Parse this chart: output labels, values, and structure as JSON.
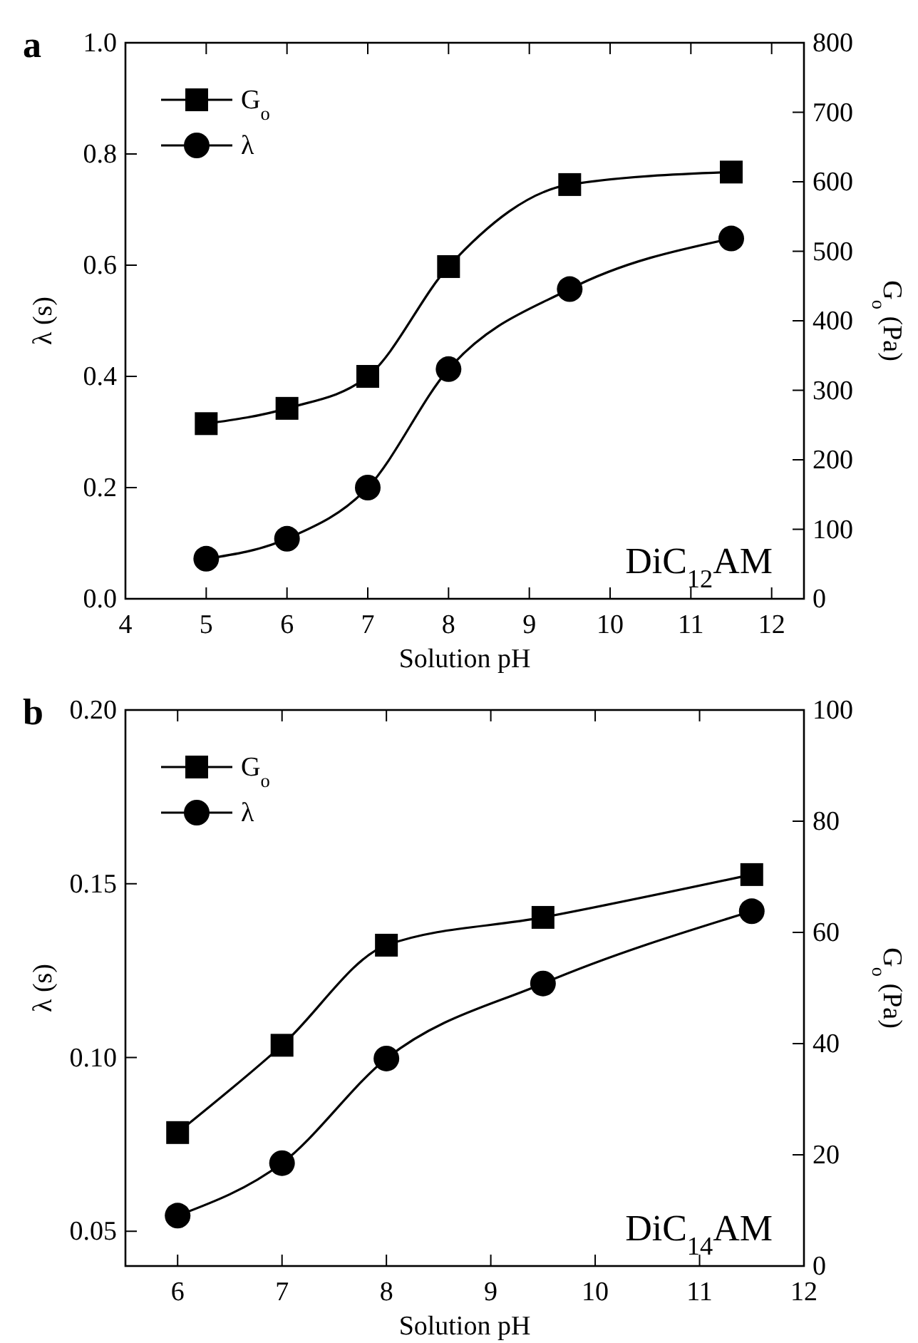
{
  "chart_data": [
    {
      "type": "line",
      "title": "a",
      "xlabel": "Solution pH",
      "ylabel": "λ (s)",
      "y2label": "G$_{o}$ (Pa)",
      "x": [
        5,
        6,
        7,
        8,
        9.5,
        11.5
      ],
      "series": [
        {
          "name": "G$_{o}$",
          "color": "#000000",
          "axis": "y2",
          "marker": "square",
          "values": [
            252,
            274,
            320,
            478,
            596,
            614
          ]
        },
        {
          "name": "λ",
          "color": "#000000",
          "marker": "circle",
          "values": [
            0.072,
            0.108,
            0.2,
            0.413,
            0.557,
            0.648
          ]
        }
      ],
      "xlim": [
        4,
        12.4
      ],
      "xticks": [
        4,
        5,
        6,
        7,
        8,
        9,
        10,
        11,
        12
      ],
      "ylim": [
        0,
        1
      ],
      "yticks": [
        {
          "value": 0,
          "label": "0.0"
        },
        {
          "value": 0.2,
          "label": "0.2"
        },
        {
          "value": 0.4,
          "label": "0.4"
        },
        {
          "value": 0.6,
          "label": "0.6"
        },
        {
          "value": 0.8,
          "label": "0.8"
        },
        {
          "value": 1,
          "label": "1.0"
        }
      ],
      "y2lim": [
        0,
        800
      ],
      "y2ticks": [
        0,
        100,
        200,
        300,
        400,
        500,
        600,
        700,
        800
      ],
      "legend": "top left",
      "grid": false,
      "line_style": "solid",
      "annotations": [
        "DiC$_{12}$AM"
      ]
    },
    {
      "type": "line",
      "title": "b",
      "xlabel": "Solution pH",
      "ylabel": "λ (s)",
      "y2label": "G$_{o}$ (Pa)",
      "x": [
        6,
        7,
        8,
        9.5,
        11.5
      ],
      "series": [
        {
          "name": "G$_{o}$",
          "color": "#000000",
          "axis": "y2",
          "marker": "square",
          "values": [
            24,
            39.7,
            57.7,
            62.7,
            70.4
          ]
        },
        {
          "name": "λ",
          "color": "#000000",
          "marker": "circle",
          "values": [
            0.0545,
            0.0696,
            0.0997,
            0.1213,
            0.1421
          ]
        }
      ],
      "xlim": [
        5.5,
        12
      ],
      "xticks": [
        6,
        7,
        8,
        9,
        10,
        11,
        12
      ],
      "ylim": [
        0.04,
        0.2
      ],
      "yticks": [
        {
          "value": 0.05,
          "label": "0.05"
        },
        {
          "value": 0.1,
          "label": "0.10"
        },
        {
          "value": 0.15,
          "label": "0.15"
        },
        {
          "value": 0.2,
          "label": "0.20"
        }
      ],
      "y2lim": [
        0,
        100
      ],
      "y2ticks": [
        0,
        20,
        40,
        60,
        80,
        100
      ],
      "legend": "top left",
      "grid": false,
      "line_style": "solid",
      "annotations": [
        "DiC$_{14}$AM"
      ]
    }
  ]
}
